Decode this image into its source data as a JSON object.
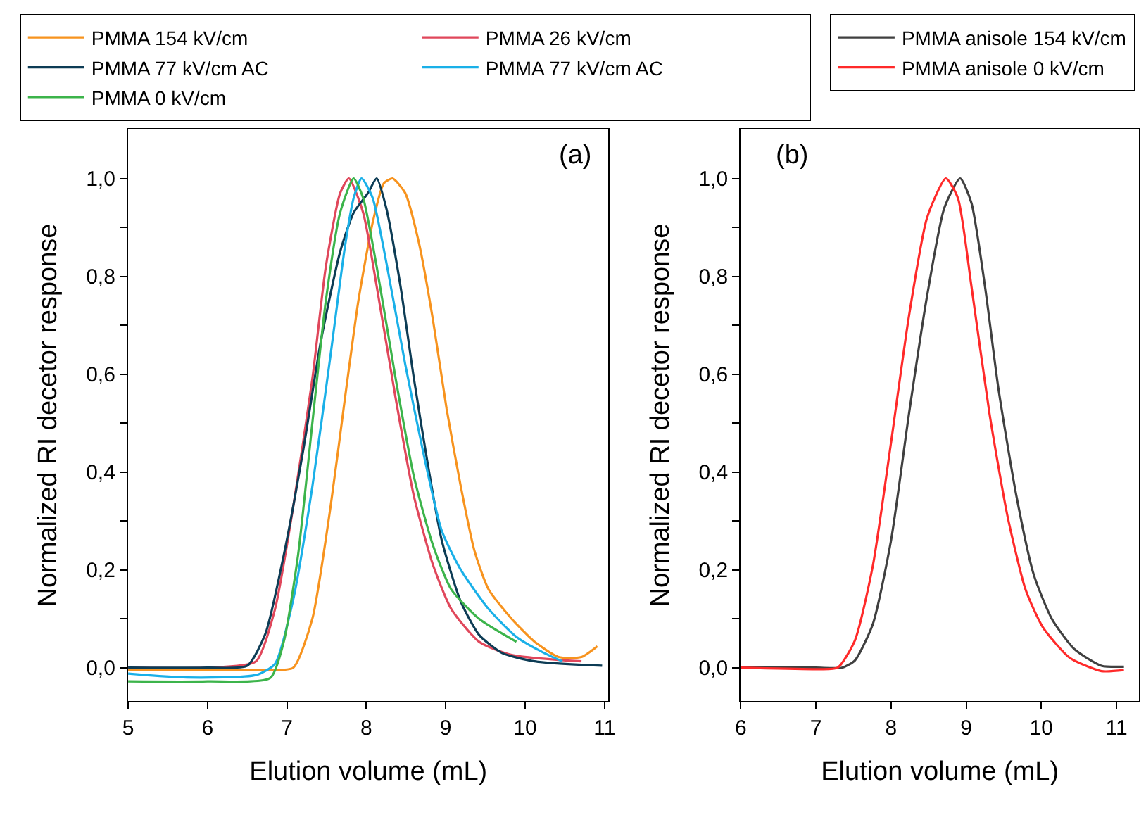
{
  "chart_data": [
    {
      "type": "line",
      "xlabel": "Elution volume (mL)",
      "ylabel": "Normalized RI decetor response",
      "annotations": [
        "(a)"
      ],
      "legend": "top",
      "grid": false,
      "marker": "none",
      "line_style": "solid",
      "xlim": [
        5,
        11.05
      ],
      "xticks": [
        5,
        6,
        7,
        8,
        9,
        10,
        11
      ],
      "ylim": [
        -0.068,
        1.1
      ],
      "yticks": [
        {
          "value": 0,
          "label": "0,0"
        },
        {
          "value": 0.1,
          "label": null
        },
        {
          "value": 0.2,
          "label": "0,2"
        },
        {
          "value": 0.3,
          "label": null
        },
        {
          "value": 0.4,
          "label": "0,4"
        },
        {
          "value": 0.5,
          "label": null
        },
        {
          "value": 0.6,
          "label": "0,6"
        },
        {
          "value": 0.7,
          "label": null
        },
        {
          "value": 0.8,
          "label": "0,8"
        },
        {
          "value": 0.9,
          "label": null
        },
        {
          "value": 1.0,
          "label": "1,0"
        }
      ],
      "series": [
        {
          "name": "PMMA 154 kV/cm",
          "color": "#f7931e",
          "x": [
            5,
            6,
            6.8,
            7.08,
            7.32,
            7.55,
            7.73,
            7.9,
            8.08,
            8.22,
            8.33,
            8.49,
            8.66,
            8.84,
            9.01,
            9.19,
            9.36,
            9.54,
            9.83,
            10.12,
            10.42,
            10.71,
            10.91
          ],
          "values": [
            -0.005,
            -0.005,
            -0.005,
            0.0,
            0.1,
            0.33,
            0.55,
            0.75,
            0.91,
            0.99,
            1.0,
            0.97,
            0.87,
            0.71,
            0.53,
            0.37,
            0.24,
            0.16,
            0.1,
            0.053,
            0.022,
            0.022,
            0.044
          ]
        },
        {
          "name": "PMMA 26 kV/cm",
          "color": "#e0475b",
          "x": [
            5,
            6,
            6.61,
            6.85,
            7.08,
            7.32,
            7.49,
            7.67,
            7.78,
            7.96,
            8.13,
            8.37,
            8.6,
            8.84,
            9.07,
            9.42,
            9.83,
            10.71
          ],
          "values": [
            0.0,
            0.0,
            0.013,
            0.12,
            0.33,
            0.59,
            0.82,
            0.97,
            1.0,
            0.93,
            0.78,
            0.55,
            0.35,
            0.21,
            0.12,
            0.053,
            0.026,
            0.013
          ]
        },
        {
          "name": "PMMA 77 kV/cm AC",
          "color": "#0d3c55",
          "x": [
            5,
            6,
            6.5,
            6.73,
            6.96,
            7.2,
            7.43,
            7.67,
            7.84,
            8.02,
            8.13,
            8.25,
            8.43,
            8.6,
            8.78,
            8.95,
            9.19,
            9.42,
            9.71,
            10.12,
            10.97
          ],
          "values": [
            0.0,
            0.0,
            0.004,
            0.07,
            0.23,
            0.44,
            0.67,
            0.85,
            0.93,
            0.97,
            1.0,
            0.94,
            0.78,
            0.59,
            0.41,
            0.26,
            0.135,
            0.067,
            0.03,
            0.013,
            0.004
          ]
        },
        {
          "name": "PMMA 77 kV/cm AC",
          "color": "#1ab0e8",
          "x": [
            5,
            5.74,
            6.61,
            6.85,
            7.08,
            7.32,
            7.55,
            7.73,
            7.84,
            7.94,
            8.08,
            8.25,
            8.49,
            8.73,
            8.95,
            9.19,
            9.54,
            9.89,
            10.24,
            10.47
          ],
          "values": [
            -0.012,
            -0.02,
            -0.015,
            0.008,
            0.14,
            0.37,
            0.64,
            0.86,
            0.96,
            1.0,
            0.96,
            0.83,
            0.62,
            0.43,
            0.28,
            0.2,
            0.12,
            0.063,
            0.03,
            0.013
          ]
        },
        {
          "name": "PMMA 0 kV/cm",
          "color": "#3cb44b",
          "x": [
            5,
            6,
            6.79,
            6.96,
            7.14,
            7.32,
            7.49,
            7.67,
            7.84,
            7.96,
            8.13,
            8.37,
            8.6,
            8.84,
            9.07,
            9.42,
            9.89
          ],
          "values": [
            -0.028,
            -0.028,
            -0.021,
            0.053,
            0.23,
            0.5,
            0.75,
            0.93,
            1.0,
            0.96,
            0.82,
            0.59,
            0.39,
            0.25,
            0.16,
            0.1,
            0.053
          ]
        }
      ]
    },
    {
      "type": "line",
      "xlabel": "Elution volume (mL)",
      "ylabel": "Normalized RI decetor response",
      "annotations": [
        "(b)"
      ],
      "legend": "top",
      "grid": false,
      "marker": "none",
      "line_style": "solid",
      "xlim": [
        6,
        11.3
      ],
      "xticks": [
        6,
        7,
        8,
        9,
        10,
        11
      ],
      "ylim": [
        -0.068,
        1.1
      ],
      "yticks": [
        {
          "value": 0,
          "label": "0,0"
        },
        {
          "value": 0.1,
          "label": null
        },
        {
          "value": 0.2,
          "label": "0,2"
        },
        {
          "value": 0.3,
          "label": null
        },
        {
          "value": 0.4,
          "label": "0,4"
        },
        {
          "value": 0.5,
          "label": null
        },
        {
          "value": 0.6,
          "label": "0,6"
        },
        {
          "value": 0.7,
          "label": null
        },
        {
          "value": 0.8,
          "label": "0,8"
        },
        {
          "value": 0.9,
          "label": null
        },
        {
          "value": 1.0,
          "label": "1,0"
        }
      ],
      "series": [
        {
          "name": "PMMA anisole 154 kV/cm",
          "color": "#404040",
          "x": [
            6,
            7,
            7.35,
            7.52,
            7.76,
            8.0,
            8.24,
            8.48,
            8.71,
            8.92,
            9.07,
            9.25,
            9.43,
            9.67,
            9.9,
            10.14,
            10.44,
            10.8,
            11.1
          ],
          "values": [
            0.0,
            0.0,
            0.0,
            0.015,
            0.09,
            0.26,
            0.52,
            0.76,
            0.94,
            1.0,
            0.95,
            0.78,
            0.57,
            0.35,
            0.19,
            0.1,
            0.038,
            0.004,
            0.002
          ]
        },
        {
          "name": "PMMA anisole 0 kV/cm",
          "color": "#ff2a2a",
          "x": [
            6,
            7,
            7.29,
            7.52,
            7.76,
            8.0,
            8.24,
            8.48,
            8.73,
            8.89,
            9.07,
            9.31,
            9.55,
            9.79,
            10.02,
            10.38,
            10.8,
            11.1
          ],
          "values": [
            0.0,
            -0.003,
            0.0,
            0.056,
            0.21,
            0.46,
            0.72,
            0.92,
            1.0,
            0.96,
            0.78,
            0.52,
            0.31,
            0.16,
            0.083,
            0.02,
            -0.007,
            -0.005
          ]
        }
      ]
    }
  ]
}
